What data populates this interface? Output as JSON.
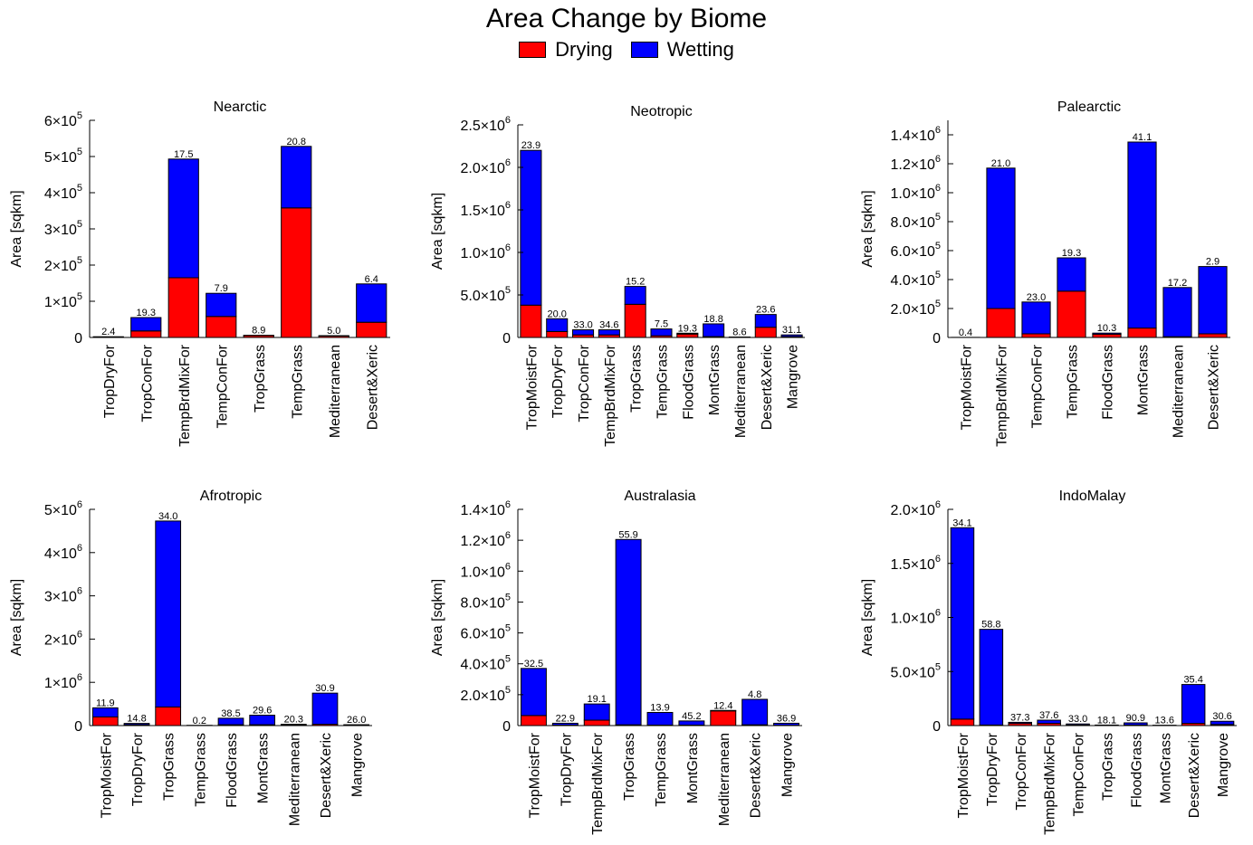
{
  "title": "Area Change by Biome",
  "legend": [
    {
      "label": "Drying",
      "color": "#ff0000"
    },
    {
      "label": "Wetting",
      "color": "#0000ff"
    }
  ],
  "chart_data": [
    {
      "type": "bar",
      "stacked": true,
      "title": "Nearctic",
      "ylabel": "Area [sqkm]",
      "xlabel": "",
      "ylim": [
        0,
        600000
      ],
      "yticks": [
        {
          "v": 0,
          "c": "0"
        },
        {
          "v": 100000,
          "c": "1",
          "e": "5"
        },
        {
          "v": 200000,
          "c": "2",
          "e": "5"
        },
        {
          "v": 300000,
          "c": "3",
          "e": "5"
        },
        {
          "v": 400000,
          "c": "4",
          "e": "5"
        },
        {
          "v": 500000,
          "c": "5",
          "e": "5"
        },
        {
          "v": 600000,
          "c": "6",
          "e": "5"
        }
      ],
      "categories": [
        "TropDryFor",
        "TropConFor",
        "TempBrdMixFor",
        "TempConFor",
        "TropGrass",
        "TempGrass",
        "Mediterranean",
        "Desert&Xeric"
      ],
      "series": [
        {
          "name": "Drying",
          "values": [
            500,
            18000,
            165000,
            58000,
            5000,
            358000,
            4000,
            42000
          ]
        },
        {
          "name": "Wetting",
          "values": [
            1500,
            37000,
            328000,
            64000,
            1000,
            170000,
            1000,
            106000
          ]
        }
      ],
      "labels": [
        "2.4",
        "19.3",
        "17.5",
        "7.9",
        "8.9",
        "20.8",
        "5.0",
        "6.4"
      ]
    },
    {
      "type": "bar",
      "stacked": true,
      "title": "Neotropic",
      "ylabel": "Area [sqkm]",
      "xlabel": "",
      "ylim": [
        0,
        2500000
      ],
      "yticks": [
        {
          "v": 0,
          "c": "0"
        },
        {
          "v": 500000,
          "c": "5.0×10",
          "e": "5"
        },
        {
          "v": 1000000,
          "c": "1.0×10",
          "e": "6"
        },
        {
          "v": 1500000,
          "c": "1.5×10",
          "e": "6"
        },
        {
          "v": 2000000,
          "c": "2.0×10",
          "e": "6"
        },
        {
          "v": 2500000,
          "c": "2.5×10",
          "e": "6"
        }
      ],
      "categories": [
        "TropMoistFor",
        "TropDryFor",
        "TropConFor",
        "TempBrdMixFor",
        "TropGrass",
        "TempGrass",
        "FloodGrass",
        "MontGrass",
        "Mediterranean",
        "Desert&Xeric",
        "Mangrove"
      ],
      "series": [
        {
          "name": "Drying",
          "values": [
            380000,
            70000,
            30000,
            30000,
            390000,
            20000,
            40000,
            10000,
            3000,
            120000,
            10000
          ]
        },
        {
          "name": "Wetting",
          "values": [
            1820000,
            150000,
            60000,
            60000,
            210000,
            80000,
            10000,
            150000,
            2000,
            150000,
            20000
          ]
        }
      ],
      "labels": [
        "23.9",
        "20.0",
        "33.0",
        "34.6",
        "15.2",
        "7.5",
        "19.3",
        "18.8",
        "8.6",
        "23.6",
        "31.1"
      ]
    },
    {
      "type": "bar",
      "stacked": true,
      "title": "Palearctic",
      "ylabel": "Area [sqkm]",
      "xlabel": "",
      "ylim": [
        0,
        1500000
      ],
      "yticks": [
        {
          "v": 0,
          "c": "0"
        },
        {
          "v": 200000,
          "c": "2.0×10",
          "e": "5"
        },
        {
          "v": 400000,
          "c": "4.0×10",
          "e": "5"
        },
        {
          "v": 600000,
          "c": "6.0×10",
          "e": "5"
        },
        {
          "v": 800000,
          "c": "8.0×10",
          "e": "5"
        },
        {
          "v": 1000000,
          "c": "1.0×10",
          "e": "6"
        },
        {
          "v": 1200000,
          "c": "1.2×10",
          "e": "6"
        },
        {
          "v": 1400000,
          "c": "1.4×10",
          "e": "6"
        }
      ],
      "categories": [
        "TropMoistFor",
        "TempBrdMixFor",
        "TempConFor",
        "TempGrass",
        "FloodGrass",
        "MontGrass",
        "Mediterranean",
        "Desert&Xeric"
      ],
      "series": [
        {
          "name": "Drying",
          "values": [
            200,
            200000,
            25000,
            320000,
            22000,
            65000,
            5000,
            25000
          ]
        },
        {
          "name": "Wetting",
          "values": [
            300,
            970000,
            220000,
            230000,
            8000,
            1285000,
            340000,
            465000
          ]
        }
      ],
      "labels": [
        "0.4",
        "21.0",
        "23.0",
        "19.3",
        "10.3",
        "41.1",
        "17.2",
        "2.9"
      ]
    },
    {
      "type": "bar",
      "stacked": true,
      "title": "Afrotropic",
      "ylabel": "Area [sqkm]",
      "xlabel": "",
      "ylim": [
        0,
        5000000
      ],
      "yticks": [
        {
          "v": 0,
          "c": "0"
        },
        {
          "v": 1000000,
          "c": "1",
          "e": "6"
        },
        {
          "v": 2000000,
          "c": "2",
          "e": "6"
        },
        {
          "v": 3000000,
          "c": "3",
          "e": "6"
        },
        {
          "v": 4000000,
          "c": "4",
          "e": "6"
        },
        {
          "v": 5000000,
          "c": "5",
          "e": "6"
        }
      ],
      "categories": [
        "TropMoistFor",
        "TropDryFor",
        "TropGrass",
        "TempGrass",
        "FloodGrass",
        "MontGrass",
        "Mediterranean",
        "Desert&Xeric",
        "Mangrove"
      ],
      "series": [
        {
          "name": "Drying",
          "values": [
            200000,
            20000,
            430000,
            2000,
            20000,
            20000,
            10000,
            30000,
            5000
          ]
        },
        {
          "name": "Wetting",
          "values": [
            210000,
            30000,
            4300000,
            3000,
            150000,
            220000,
            20000,
            720000,
            15000
          ]
        }
      ],
      "labels": [
        "11.9",
        "14.8",
        "34.0",
        "0.2",
        "38.5",
        "29.6",
        "20.3",
        "30.9",
        "26.0"
      ]
    },
    {
      "type": "bar",
      "stacked": true,
      "title": "Australasia",
      "ylabel": "Area [sqkm]",
      "xlabel": "",
      "ylim": [
        0,
        1400000
      ],
      "yticks": [
        {
          "v": 0,
          "c": "0"
        },
        {
          "v": 200000,
          "c": "2.0×10",
          "e": "5"
        },
        {
          "v": 400000,
          "c": "4.0×10",
          "e": "5"
        },
        {
          "v": 600000,
          "c": "6.0×10",
          "e": "5"
        },
        {
          "v": 800000,
          "c": "8.0×10",
          "e": "5"
        },
        {
          "v": 1000000,
          "c": "1.0×10",
          "e": "6"
        },
        {
          "v": 1200000,
          "c": "1.2×10",
          "e": "6"
        },
        {
          "v": 1400000,
          "c": "1.4×10",
          "e": "6"
        }
      ],
      "categories": [
        "TropMoistFor",
        "TropDryFor",
        "TempBrdMixFor",
        "TropGrass",
        "TempGrass",
        "MontGrass",
        "Mediterranean",
        "Desert&Xeric",
        "Mangrove"
      ],
      "series": [
        {
          "name": "Drying",
          "values": [
            65000,
            3000,
            35000,
            5000,
            3000,
            3000,
            95000,
            5000,
            2000
          ]
        },
        {
          "name": "Wetting",
          "values": [
            305000,
            12000,
            105000,
            1200000,
            82000,
            27000,
            3000,
            165000,
            13000
          ]
        }
      ],
      "labels": [
        "32.5",
        "22.9",
        "19.1",
        "55.9",
        "13.9",
        "45.2",
        "12.4",
        "4.8",
        "36.9"
      ]
    },
    {
      "type": "bar",
      "stacked": true,
      "title": "IndoMalay",
      "ylabel": "Area [sqkm]",
      "xlabel": "",
      "ylim": [
        0,
        2000000
      ],
      "yticks": [
        {
          "v": 0,
          "c": "0"
        },
        {
          "v": 500000,
          "c": "5.0×10",
          "e": "5"
        },
        {
          "v": 1000000,
          "c": "1.0×10",
          "e": "6"
        },
        {
          "v": 1500000,
          "c": "1.5×10",
          "e": "6"
        },
        {
          "v": 2000000,
          "c": "2.0×10",
          "e": "6"
        }
      ],
      "categories": [
        "TropMoistFor",
        "TropDryFor",
        "TropConFor",
        "TempBrdMixFor",
        "TempConFor",
        "TropGrass",
        "FloodGrass",
        "MontGrass",
        "Desert&Xeric",
        "Mangrove"
      ],
      "series": [
        {
          "name": "Drying",
          "values": [
            60000,
            5000,
            20000,
            20000,
            5000,
            2000,
            5000,
            1000,
            20000,
            10000
          ]
        },
        {
          "name": "Wetting",
          "values": [
            1770000,
            885000,
            10000,
            30000,
            10000,
            3000,
            20000,
            2000,
            360000,
            30000
          ]
        }
      ],
      "labels": [
        "34.1",
        "58.8",
        "37.3",
        "37.6",
        "33.0",
        "18.1",
        "90.9",
        "13.6",
        "35.4",
        "30.6"
      ]
    }
  ]
}
